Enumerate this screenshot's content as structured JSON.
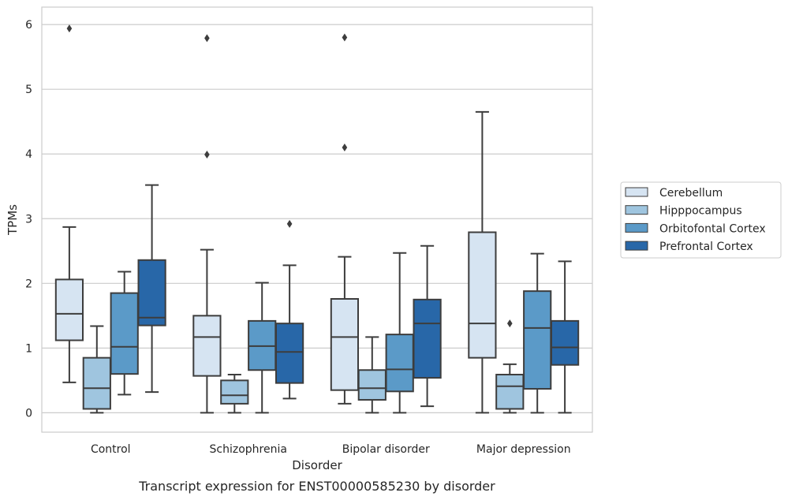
{
  "chart_data": {
    "type": "box",
    "caption": "Transcript expression for ENST00000585230 by disorder",
    "xlabel": "Disorder",
    "ylabel": "TPMs",
    "ylim": [
      -0.3,
      6.27
    ],
    "yticks": [
      0,
      1,
      2,
      3,
      4,
      5,
      6
    ],
    "grid": "horizontal",
    "legend_position": "right",
    "categories": [
      "Control",
      "Schizophrenia",
      "Bipolar disorder",
      "Major depression"
    ],
    "series": [
      {
        "name": "Cerebellum",
        "color": "#d6e4f2",
        "boxes": [
          {
            "whisker_low": 0.47,
            "q1": 1.12,
            "median": 1.53,
            "q3": 2.06,
            "whisker_high": 2.87,
            "outliers": [
              5.94
            ]
          },
          {
            "whisker_low": 0.0,
            "q1": 0.57,
            "median": 1.17,
            "q3": 1.5,
            "whisker_high": 2.52,
            "outliers": [
              5.79,
              3.99
            ]
          },
          {
            "whisker_low": 0.14,
            "q1": 0.35,
            "median": 1.17,
            "q3": 1.76,
            "whisker_high": 2.41,
            "outliers": [
              5.8,
              4.1
            ]
          },
          {
            "whisker_low": 0.0,
            "q1": 0.85,
            "median": 1.38,
            "q3": 2.79,
            "whisker_high": 4.65,
            "outliers": []
          }
        ]
      },
      {
        "name": "Hipppocampus",
        "color": "#9fc5df",
        "boxes": [
          {
            "whisker_low": 0.0,
            "q1": 0.06,
            "median": 0.38,
            "q3": 0.85,
            "whisker_high": 1.34,
            "outliers": []
          },
          {
            "whisker_low": 0.0,
            "q1": 0.14,
            "median": 0.27,
            "q3": 0.5,
            "whisker_high": 0.59,
            "outliers": []
          },
          {
            "whisker_low": 0.0,
            "q1": 0.2,
            "median": 0.38,
            "q3": 0.66,
            "whisker_high": 1.17,
            "outliers": []
          },
          {
            "whisker_low": 0.0,
            "q1": 0.06,
            "median": 0.41,
            "q3": 0.59,
            "whisker_high": 0.75,
            "outliers": [
              1.38
            ]
          }
        ]
      },
      {
        "name": "Orbitofontal Cortex",
        "color": "#5b9ac8",
        "boxes": [
          {
            "whisker_low": 0.28,
            "q1": 0.6,
            "median": 1.02,
            "q3": 1.85,
            "whisker_high": 2.18,
            "outliers": []
          },
          {
            "whisker_low": 0.0,
            "q1": 0.66,
            "median": 1.03,
            "q3": 1.42,
            "whisker_high": 2.01,
            "outliers": []
          },
          {
            "whisker_low": 0.0,
            "q1": 0.33,
            "median": 0.67,
            "q3": 1.21,
            "whisker_high": 2.47,
            "outliers": []
          },
          {
            "whisker_low": 0.0,
            "q1": 0.37,
            "median": 1.31,
            "q3": 1.88,
            "whisker_high": 2.46,
            "outliers": []
          }
        ]
      },
      {
        "name": "Prefrontal Cortex",
        "color": "#2867a8",
        "boxes": [
          {
            "whisker_low": 0.32,
            "q1": 1.35,
            "median": 1.47,
            "q3": 2.36,
            "whisker_high": 3.52,
            "outliers": []
          },
          {
            "whisker_low": 0.22,
            "q1": 0.46,
            "median": 0.94,
            "q3": 1.38,
            "whisker_high": 2.28,
            "outliers": [
              2.92
            ]
          },
          {
            "whisker_low": 0.1,
            "q1": 0.54,
            "median": 1.38,
            "q3": 1.75,
            "whisker_high": 2.58,
            "outliers": []
          },
          {
            "whisker_low": 0.0,
            "q1": 0.74,
            "median": 1.01,
            "q3": 1.42,
            "whisker_high": 2.34,
            "outliers": []
          }
        ]
      }
    ]
  }
}
